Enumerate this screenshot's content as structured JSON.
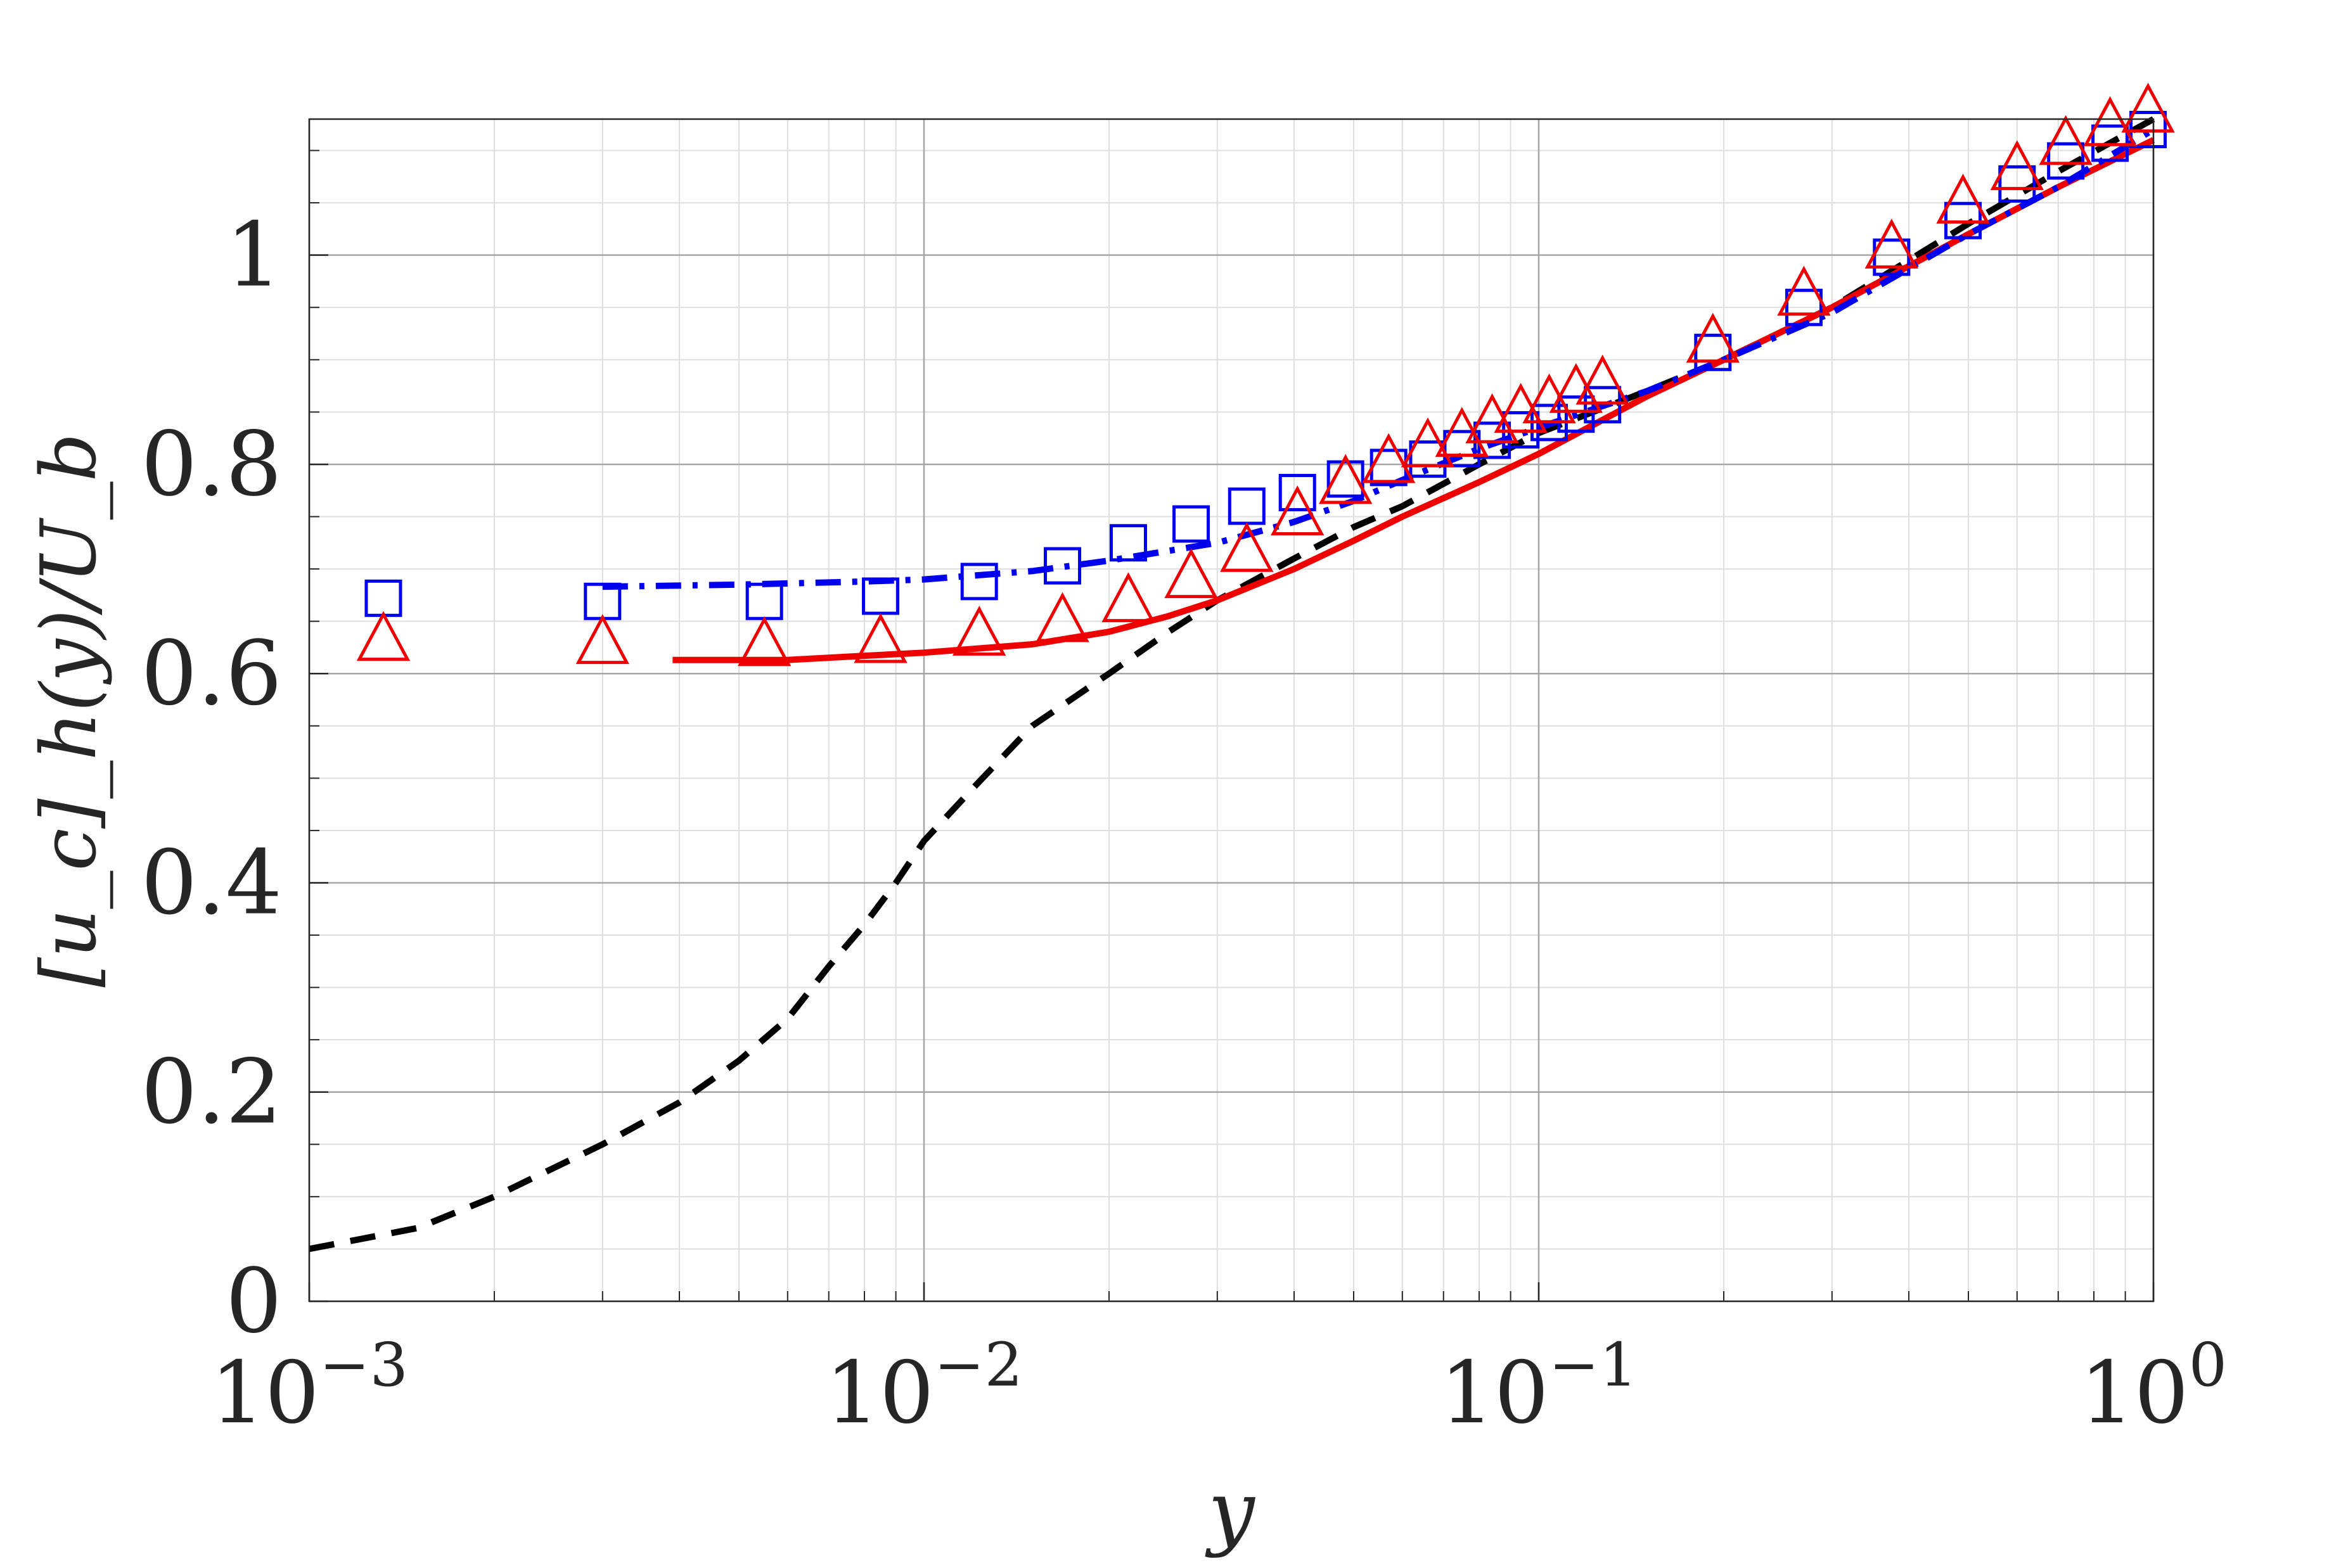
{
  "chart_data": {
    "type": "line",
    "title": "",
    "xlabel": "y",
    "ylabel": "[u_c]_h(y)/U_b",
    "x_scale": "log",
    "xlim": [
      0.001,
      1
    ],
    "ylim": [
      0,
      1.13
    ],
    "grid": true,
    "minor_grid": true,
    "legend": "none",
    "x_ticks": [
      {
        "value": 0.001,
        "base": "10",
        "exp": "−3"
      },
      {
        "value": 0.01,
        "base": "10",
        "exp": "−2"
      },
      {
        "value": 0.1,
        "base": "10",
        "exp": "−1"
      },
      {
        "value": 1,
        "base": "10",
        "exp": "0"
      }
    ],
    "y_ticks": [
      {
        "value": 0,
        "label": "0"
      },
      {
        "value": 0.2,
        "label": "0.2"
      },
      {
        "value": 0.4,
        "label": "0.4"
      },
      {
        "value": 0.6,
        "label": "0.6"
      },
      {
        "value": 0.8,
        "label": "0.8"
      },
      {
        "value": 1,
        "label": "1"
      }
    ],
    "series": [
      {
        "style": "dashed-line",
        "color": "#000000",
        "points": [
          [
            0.001,
            0.05
          ],
          [
            0.0015,
            0.07
          ],
          [
            0.002,
            0.1
          ],
          [
            0.003,
            0.15
          ],
          [
            0.004,
            0.19
          ],
          [
            0.005,
            0.23
          ],
          [
            0.006,
            0.27
          ],
          [
            0.007,
            0.32
          ],
          [
            0.008,
            0.36
          ],
          [
            0.009,
            0.4
          ],
          [
            0.01,
            0.44
          ],
          [
            0.012,
            0.49
          ],
          [
            0.015,
            0.55
          ],
          [
            0.02,
            0.6
          ],
          [
            0.025,
            0.64
          ],
          [
            0.03,
            0.67
          ],
          [
            0.04,
            0.71
          ],
          [
            0.05,
            0.74
          ],
          [
            0.06,
            0.76
          ],
          [
            0.08,
            0.8
          ],
          [
            0.1,
            0.83
          ],
          [
            0.15,
            0.87
          ],
          [
            0.2,
            0.9
          ],
          [
            0.3,
            0.95
          ],
          [
            0.5,
            1.03
          ],
          [
            0.7,
            1.08
          ],
          [
            1.0,
            1.13
          ]
        ]
      },
      {
        "style": "solid-line",
        "color": "#ee0000",
        "points": [
          [
            0.0039,
            0.613
          ],
          [
            0.006,
            0.613
          ],
          [
            0.008,
            0.617
          ],
          [
            0.01,
            0.62
          ],
          [
            0.015,
            0.628
          ],
          [
            0.02,
            0.64
          ],
          [
            0.025,
            0.655
          ],
          [
            0.03,
            0.67
          ],
          [
            0.04,
            0.7
          ],
          [
            0.05,
            0.727
          ],
          [
            0.06,
            0.75
          ],
          [
            0.08,
            0.783
          ],
          [
            0.1,
            0.81
          ],
          [
            0.15,
            0.865
          ],
          [
            0.2,
            0.9
          ],
          [
            0.3,
            0.95
          ],
          [
            0.5,
            1.02
          ],
          [
            0.7,
            1.065
          ],
          [
            1.0,
            1.11
          ]
        ]
      },
      {
        "style": "dashdot-line",
        "color": "#0000ee",
        "points": [
          [
            0.003,
            0.683
          ],
          [
            0.005,
            0.685
          ],
          [
            0.008,
            0.688
          ],
          [
            0.01,
            0.69
          ],
          [
            0.015,
            0.698
          ],
          [
            0.02,
            0.708
          ],
          [
            0.03,
            0.725
          ],
          [
            0.04,
            0.745
          ],
          [
            0.05,
            0.765
          ],
          [
            0.06,
            0.785
          ],
          [
            0.08,
            0.815
          ],
          [
            0.1,
            0.835
          ],
          [
            0.15,
            0.87
          ],
          [
            0.2,
            0.9
          ],
          [
            0.3,
            0.945
          ],
          [
            0.5,
            1.02
          ],
          [
            0.7,
            1.065
          ],
          [
            1.0,
            1.12
          ]
        ]
      },
      {
        "style": "square-markers",
        "color": "#0000ee",
        "points": [
          [
            0.00132,
            0.672
          ],
          [
            0.003,
            0.669
          ],
          [
            0.0055,
            0.669
          ],
          [
            0.0085,
            0.674
          ],
          [
            0.0123,
            0.688
          ],
          [
            0.0168,
            0.703
          ],
          [
            0.0215,
            0.725
          ],
          [
            0.0272,
            0.743
          ],
          [
            0.0335,
            0.76
          ],
          [
            0.0405,
            0.773
          ],
          [
            0.0485,
            0.786
          ],
          [
            0.057,
            0.797
          ],
          [
            0.066,
            0.805
          ],
          [
            0.075,
            0.815
          ],
          [
            0.084,
            0.823
          ],
          [
            0.0935,
            0.833
          ],
          [
            0.104,
            0.84
          ],
          [
            0.115,
            0.848
          ],
          [
            0.127,
            0.857
          ],
          [
            0.192,
            0.907
          ],
          [
            0.27,
            0.95
          ],
          [
            0.375,
            0.998
          ],
          [
            0.49,
            1.033
          ],
          [
            0.6,
            1.068
          ],
          [
            0.72,
            1.09
          ],
          [
            0.85,
            1.107
          ],
          [
            0.98,
            1.12
          ]
        ]
      },
      {
        "style": "triangle-markers",
        "color": "#ee0000",
        "points": [
          [
            0.00132,
            0.63
          ],
          [
            0.003,
            0.627
          ],
          [
            0.0055,
            0.625
          ],
          [
            0.0085,
            0.628
          ],
          [
            0.0123,
            0.635
          ],
          [
            0.0168,
            0.648
          ],
          [
            0.0215,
            0.667
          ],
          [
            0.0272,
            0.69
          ],
          [
            0.0335,
            0.715
          ],
          [
            0.0405,
            0.75
          ],
          [
            0.0485,
            0.78
          ],
          [
            0.057,
            0.8
          ],
          [
            0.066,
            0.815
          ],
          [
            0.075,
            0.825
          ],
          [
            0.084,
            0.838
          ],
          [
            0.0935,
            0.848
          ],
          [
            0.104,
            0.857
          ],
          [
            0.115,
            0.867
          ],
          [
            0.127,
            0.875
          ],
          [
            0.192,
            0.915
          ],
          [
            0.27,
            0.96
          ],
          [
            0.375,
            1.005
          ],
          [
            0.49,
            1.048
          ],
          [
            0.6,
            1.08
          ],
          [
            0.72,
            1.104
          ],
          [
            0.85,
            1.122
          ],
          [
            0.98,
            1.135
          ]
        ]
      }
    ]
  }
}
